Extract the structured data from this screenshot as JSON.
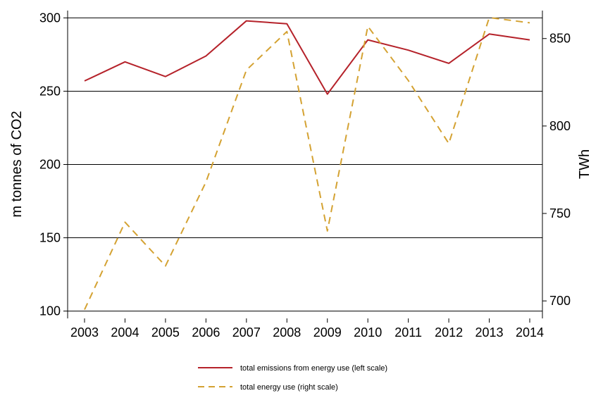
{
  "chart_data": {
    "type": "line",
    "title": "",
    "x": [
      "2003",
      "2004",
      "2005",
      "2006",
      "2007",
      "2008",
      "2009",
      "2010",
      "2011",
      "2012",
      "2013",
      "2014"
    ],
    "left_axis": {
      "label": "m tonnes of CO2",
      "ylim": [
        95,
        305
      ],
      "ticks": [
        100,
        150,
        200,
        250,
        300
      ]
    },
    "right_axis": {
      "label": "TWh",
      "ylim": [
        690,
        866
      ],
      "ticks": [
        700,
        750,
        800,
        850
      ]
    },
    "grid": "horizontal (left axis ticks)",
    "legend_position": "bottom",
    "series": [
      {
        "name": "total emissions from energy use (left scale)",
        "axis": "left",
        "style": "solid",
        "color": "#b5222a",
        "values": [
          257,
          270,
          260,
          274,
          298,
          296,
          248,
          285,
          278,
          269,
          289,
          285
        ]
      },
      {
        "name": "total energy use (right scale)",
        "axis": "right",
        "style": "dashed",
        "color": "#d4a232",
        "values": [
          695,
          745,
          720,
          768,
          832,
          854,
          740,
          857,
          826,
          790,
          862,
          859
        ]
      }
    ]
  }
}
